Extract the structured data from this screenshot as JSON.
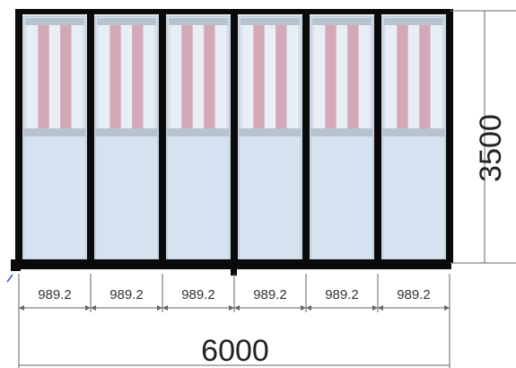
{
  "drawing": {
    "total_width_label": "6000",
    "height_label": "3500",
    "panel_count": 6,
    "panel_width_labels": [
      "989.2",
      "989.2",
      "989.2",
      "989.2",
      "989.2",
      "989.2"
    ],
    "colors": {
      "frame": "#0a0a0a",
      "glass": "#d6e2ef",
      "glass_border": "#a7b6c4",
      "transom_bar": "#b7c3cf",
      "stripe_pink": "#d3a8b7",
      "stripe_light": "#e9eef4",
      "dimension_line": "#666666"
    }
  }
}
